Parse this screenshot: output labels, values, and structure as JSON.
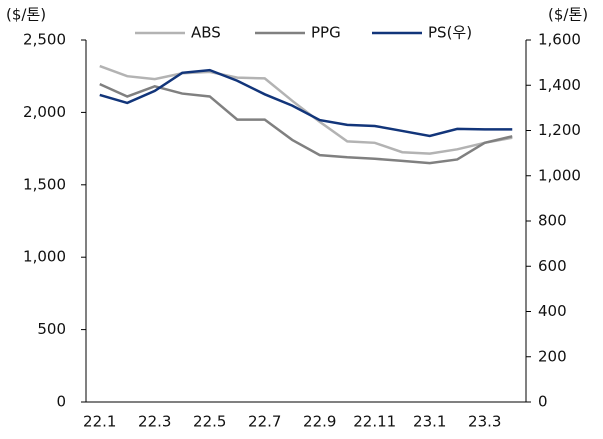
{
  "chart_data": {
    "type": "line",
    "y_unit": "($/톤)",
    "y2_unit": "($/톤)",
    "categories": [
      "22.1",
      null,
      "22.3",
      null,
      "22.5",
      null,
      "22.7",
      null,
      "22.9",
      null,
      "22.11",
      null,
      "23.1",
      null,
      "23.3",
      null
    ],
    "series": [
      {
        "name": "ABS",
        "color": "#b3b3b3",
        "values": [
          2320,
          2250,
          2230,
          2270,
          2280,
          2240,
          2235,
          2080,
          1935,
          1800,
          1790,
          1725,
          1715,
          1745,
          1790,
          1825
        ]
      },
      {
        "name": "PPG",
        "color": "#808080",
        "values": [
          2195,
          2110,
          2180,
          2130,
          2110,
          1950,
          1950,
          1810,
          1705,
          1690,
          1680,
          1665,
          1650,
          1675,
          1790,
          1835
        ]
      },
      {
        "name": "PS(우)",
        "color": "#12357a",
        "axis": "y2",
        "values": [
          1357,
          1322,
          1375,
          1455,
          1467,
          1420,
          1360,
          1310,
          1246,
          1225,
          1220,
          1198,
          1176,
          1207,
          1205,
          1205
        ]
      }
    ],
    "ylim": [
      0,
      2500
    ],
    "yticks": [
      0,
      500,
      {
        "value": 1000,
        "label": "1,000"
      },
      {
        "value": 1500,
        "label": "1,500"
      },
      {
        "value": 2000,
        "label": "2,000"
      },
      {
        "value": 2500,
        "label": "2,500"
      }
    ],
    "y2lim": [
      0,
      1600
    ],
    "y2ticks": [
      0,
      200,
      400,
      600,
      800,
      {
        "value": 1000,
        "label": "1,000"
      },
      {
        "value": 1200,
        "label": "1,200"
      },
      {
        "value": 1400,
        "label": "1,400"
      },
      {
        "value": 1600,
        "label": "1,600"
      }
    ],
    "grid": false,
    "legend": "top"
  }
}
